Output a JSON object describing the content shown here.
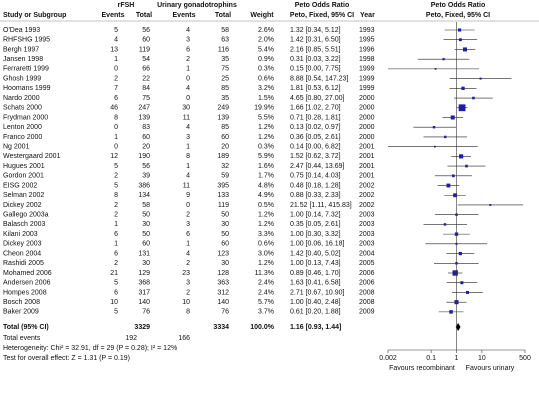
{
  "chart_data": {
    "type": "forest",
    "headers": {
      "study": "Study or Subgroup",
      "group1": "rFSH",
      "group2": "Urinary gonadotrophins",
      "events": "Events",
      "total": "Total",
      "weight": "Weight",
      "effect": "Peto Odds Ratio",
      "method": "Peto, Fixed, 95% CI",
      "year": "Year"
    },
    "studies": [
      {
        "name": "O'Dea 1993",
        "e1": 5,
        "n1": 56,
        "e2": 4,
        "n2": 58,
        "weight": 2.6,
        "weight_label": "2.6%",
        "or": 1.32,
        "lo": 0.34,
        "hi": 5.12,
        "ci_label": "1.32 [0.34, 5.12]",
        "year": 1993
      },
      {
        "name": "RHFSHG 1995",
        "e1": 4,
        "n1": 60,
        "e2": 3,
        "n2": 63,
        "weight": 2.0,
        "weight_label": "2.0%",
        "or": 1.42,
        "lo": 0.31,
        "hi": 6.5,
        "ci_label": "1.42 [0.31, 6.50]",
        "year": 1995
      },
      {
        "name": "Bergh 1997",
        "e1": 13,
        "n1": 119,
        "e2": 6,
        "n2": 116,
        "weight": 5.4,
        "weight_label": "5.4%",
        "or": 2.16,
        "lo": 0.85,
        "hi": 5.51,
        "ci_label": "2.16 [0.85, 5.51]",
        "year": 1996
      },
      {
        "name": "Jansen 1998",
        "e1": 1,
        "n1": 54,
        "e2": 2,
        "n2": 35,
        "weight": 0.9,
        "weight_label": "0.9%",
        "or": 0.31,
        "lo": 0.03,
        "hi": 3.22,
        "ci_label": "0.31 [0.03, 3.22]",
        "year": 1998
      },
      {
        "name": "Ferraretti 1999",
        "e1": 0,
        "n1": 66,
        "e2": 1,
        "n2": 75,
        "weight": 0.3,
        "weight_label": "0.3%",
        "or": 0.15,
        "lo": 0.0,
        "hi": 7.75,
        "ci_label": "0.15 [0.00, 7.75]",
        "year": 1999
      },
      {
        "name": "Ghosh 1999",
        "e1": 2,
        "n1": 22,
        "e2": 0,
        "n2": 25,
        "weight": 0.6,
        "weight_label": "0.6%",
        "or": 8.88,
        "lo": 0.54,
        "hi": 147.23,
        "ci_label": "8.88 [0.54, 147.23]",
        "year": 1999
      },
      {
        "name": "Hoomans 1999",
        "e1": 7,
        "n1": 84,
        "e2": 4,
        "n2": 85,
        "weight": 3.2,
        "weight_label": "3.2%",
        "or": 1.81,
        "lo": 0.53,
        "hi": 6.12,
        "ci_label": "1.81 [0.53, 6.12]",
        "year": 1999
      },
      {
        "name": "Nardo 2000",
        "e1": 6,
        "n1": 75,
        "e2": 0,
        "n2": 35,
        "weight": 1.5,
        "weight_label": "1.5%",
        "or": 4.65,
        "lo": 0.8,
        "hi": 27.0,
        "ci_label": "4.65 [0.80, 27.00]",
        "year": 2000
      },
      {
        "name": "Schats 2000",
        "e1": 46,
        "n1": 247,
        "e2": 30,
        "n2": 249,
        "weight": 19.9,
        "weight_label": "19.9%",
        "or": 1.66,
        "lo": 1.02,
        "hi": 2.7,
        "ci_label": "1.66 [1.02, 2.70]",
        "year": 2000
      },
      {
        "name": "Frydman 2000",
        "e1": 8,
        "n1": 139,
        "e2": 11,
        "n2": 139,
        "weight": 5.5,
        "weight_label": "5.5%",
        "or": 0.71,
        "lo": 0.28,
        "hi": 1.81,
        "ci_label": "0.71 [0.28, 1.81]",
        "year": 2000
      },
      {
        "name": "Lenton 2000",
        "e1": 0,
        "n1": 83,
        "e2": 4,
        "n2": 85,
        "weight": 1.2,
        "weight_label": "1.2%",
        "or": 0.13,
        "lo": 0.02,
        "hi": 0.97,
        "ci_label": "0.13 [0.02, 0.97]",
        "year": 2000
      },
      {
        "name": "Franco 2000",
        "e1": 1,
        "n1": 60,
        "e2": 3,
        "n2": 60,
        "weight": 1.2,
        "weight_label": "1.2%",
        "or": 0.36,
        "lo": 0.05,
        "hi": 2.61,
        "ci_label": "0.36 [0.05, 2.61]",
        "year": 2000
      },
      {
        "name": "Ng 2001",
        "e1": 0,
        "n1": 20,
        "e2": 1,
        "n2": 20,
        "weight": 0.3,
        "weight_label": "0.3%",
        "or": 0.14,
        "lo": 0.0,
        "hi": 6.82,
        "ci_label": "0.14 [0.00, 6.82]",
        "year": 2001
      },
      {
        "name": "Westergaard 2001",
        "e1": 12,
        "n1": 190,
        "e2": 8,
        "n2": 189,
        "weight": 5.9,
        "weight_label": "5.9%",
        "or": 1.52,
        "lo": 0.62,
        "hi": 3.72,
        "ci_label": "1.52 [0.62, 3.72]",
        "year": 2001
      },
      {
        "name": "Hugues 2001",
        "e1": 5,
        "n1": 56,
        "e2": 1,
        "n2": 32,
        "weight": 1.6,
        "weight_label": "1.6%",
        "or": 2.47,
        "lo": 0.44,
        "hi": 13.69,
        "ci_label": "2.47 [0.44, 13.69]",
        "year": 2001
      },
      {
        "name": "Gordon 2001",
        "e1": 2,
        "n1": 39,
        "e2": 4,
        "n2": 59,
        "weight": 1.7,
        "weight_label": "1.7%",
        "or": 0.75,
        "lo": 0.14,
        "hi": 4.03,
        "ci_label": "0.75 [0.14, 4.03]",
        "year": 2001
      },
      {
        "name": "EISG 2002",
        "e1": 5,
        "n1": 386,
        "e2": 11,
        "n2": 395,
        "weight": 4.8,
        "weight_label": "4.8%",
        "or": 0.48,
        "lo": 0.18,
        "hi": 1.28,
        "ci_label": "0.48 [0.18, 1.28]",
        "year": 2002
      },
      {
        "name": "Selman 2002",
        "e1": 8,
        "n1": 134,
        "e2": 9,
        "n2": 133,
        "weight": 4.9,
        "weight_label": "4.9%",
        "or": 0.88,
        "lo": 0.33,
        "hi": 2.33,
        "ci_label": "0.88 [0.33, 2.33]",
        "year": 2002
      },
      {
        "name": "Dickey 2002",
        "e1": 2,
        "n1": 58,
        "e2": 0,
        "n2": 119,
        "weight": 0.5,
        "weight_label": "0.5%",
        "or": 21.52,
        "lo": 1.11,
        "hi": 415.83,
        "ci_label": "21.52 [1.11, 415.83]",
        "year": 2002
      },
      {
        "name": "Gallego 2003a",
        "e1": 2,
        "n1": 50,
        "e2": 2,
        "n2": 50,
        "weight": 1.2,
        "weight_label": "1.2%",
        "or": 1.0,
        "lo": 0.14,
        "hi": 7.32,
        "ci_label": "1.00 [0.14, 7.32]",
        "year": 2003
      },
      {
        "name": "Balasch 2003",
        "e1": 1,
        "n1": 30,
        "e2": 3,
        "n2": 30,
        "weight": 1.2,
        "weight_label": "1.2%",
        "or": 0.35,
        "lo": 0.05,
        "hi": 2.61,
        "ci_label": "0.35 [0.05, 2.61]",
        "year": 2003
      },
      {
        "name": "Kilani 2003",
        "e1": 6,
        "n1": 50,
        "e2": 6,
        "n2": 50,
        "weight": 3.3,
        "weight_label": "3.3%",
        "or": 1.0,
        "lo": 0.3,
        "hi": 3.32,
        "ci_label": "1.00 [0.30, 3.32]",
        "year": 2003
      },
      {
        "name": "Dickey 2003",
        "e1": 1,
        "n1": 60,
        "e2": 1,
        "n2": 60,
        "weight": 0.6,
        "weight_label": "0.6%",
        "or": 1.0,
        "lo": 0.06,
        "hi": 16.18,
        "ci_label": "1.00 [0.06, 16.18]",
        "year": 2003
      },
      {
        "name": "Cheon 2004",
        "e1": 6,
        "n1": 131,
        "e2": 4,
        "n2": 123,
        "weight": 3.0,
        "weight_label": "3.0%",
        "or": 1.42,
        "lo": 0.4,
        "hi": 5.02,
        "ci_label": "1.42 [0.40, 5.02]",
        "year": 2004
      },
      {
        "name": "Rashidi 2005",
        "e1": 2,
        "n1": 30,
        "e2": 2,
        "n2": 30,
        "weight": 1.2,
        "weight_label": "1.2%",
        "or": 1.0,
        "lo": 0.13,
        "hi": 7.43,
        "ci_label": "1.00 [0.13, 7.43]",
        "year": 2005
      },
      {
        "name": "Mohamed 2006",
        "e1": 21,
        "n1": 129,
        "e2": 23,
        "n2": 128,
        "weight": 11.3,
        "weight_label": "11.3%",
        "or": 0.89,
        "lo": 0.46,
        "hi": 1.7,
        "ci_label": "0.89 [0.46, 1.70]",
        "year": 2006
      },
      {
        "name": "Andersen 2006",
        "e1": 5,
        "n1": 368,
        "e2": 3,
        "n2": 363,
        "weight": 2.4,
        "weight_label": "2.4%",
        "or": 1.63,
        "lo": 0.41,
        "hi": 6.58,
        "ci_label": "1.63 [0.41, 6.58]",
        "year": 2006
      },
      {
        "name": "Hompes 2008",
        "e1": 6,
        "n1": 317,
        "e2": 2,
        "n2": 312,
        "weight": 2.4,
        "weight_label": "2.4%",
        "or": 2.71,
        "lo": 0.67,
        "hi": 10.9,
        "ci_label": "2.71 [0.67, 10.90]",
        "year": 2008
      },
      {
        "name": "Bosch 2008",
        "e1": 10,
        "n1": 140,
        "e2": 10,
        "n2": 140,
        "weight": 5.7,
        "weight_label": "5.7%",
        "or": 1.0,
        "lo": 0.4,
        "hi": 2.48,
        "ci_label": "1.00 [0.40, 2.48]",
        "year": 2008
      },
      {
        "name": "Baker 2009",
        "e1": 5,
        "n1": 76,
        "e2": 8,
        "n2": 76,
        "weight": 3.7,
        "weight_label": "3.7%",
        "or": 0.61,
        "lo": 0.2,
        "hi": 1.88,
        "ci_label": "0.61 [0.20, 1.88]",
        "year": 2009
      }
    ],
    "total": {
      "label": "Total (95% CI)",
      "n1": 3329,
      "n2": 3334,
      "weight_label": "100.0%",
      "or": 1.16,
      "lo": 0.93,
      "hi": 1.44,
      "ci_label": "1.16 [0.93, 1.44]"
    },
    "total_events": {
      "label": "Total events",
      "e1": 192,
      "e2": 166
    },
    "heterogeneity": "Heterogeneity: Chi² = 32.91, df = 29 (P = 0.28); I² = 12%",
    "overall_effect": "Test for overall effect: Z = 1.31 (P = 0.19)",
    "xlim": [
      0.002,
      500
    ],
    "xticks": [
      0.002,
      0.1,
      1,
      10,
      500
    ],
    "log_x": true,
    "favours_left": "Favours recombinant",
    "favours_right": "Favours urinary",
    "color": "#1f1fa3"
  }
}
